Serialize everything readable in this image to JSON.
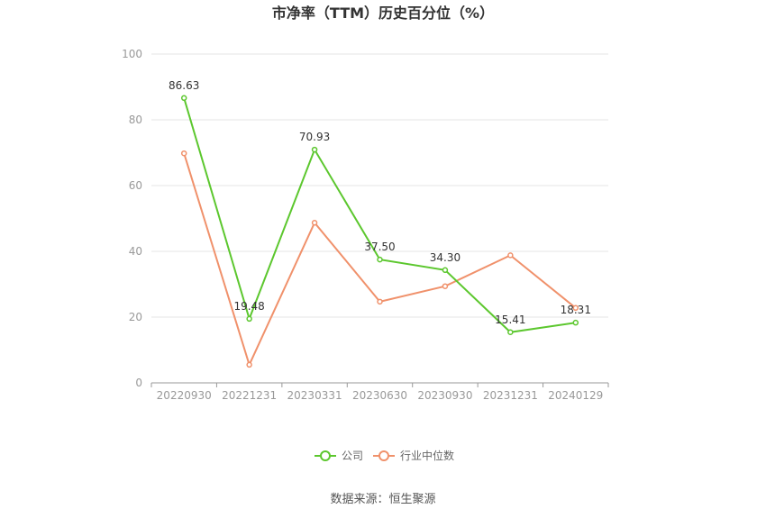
{
  "chart_data": {
    "type": "line",
    "title": "市净率（TTM）历史百分位（%）",
    "categories": [
      "20220930",
      "20221231",
      "20230331",
      "20230630",
      "20230930",
      "20231231",
      "20240129"
    ],
    "ylim": [
      0,
      100
    ],
    "yticks": [
      0,
      20,
      40,
      60,
      80,
      100
    ],
    "grid": true,
    "legend_position": "bottom",
    "series": [
      {
        "name": "公司",
        "color": "#5cc72e",
        "values": [
          86.63,
          19.48,
          70.93,
          37.5,
          34.3,
          15.41,
          18.31
        ],
        "labels": [
          "86.63",
          "19.48",
          "70.93",
          "37.50",
          "34.30",
          "15.41",
          "18.31"
        ]
      },
      {
        "name": "行业中位数",
        "color": "#f0916b",
        "values": [
          69.8,
          5.5,
          48.7,
          24.7,
          29.4,
          38.8,
          22.8
        ]
      }
    ]
  },
  "footer": {
    "source": "数据来源：恒生聚源"
  }
}
